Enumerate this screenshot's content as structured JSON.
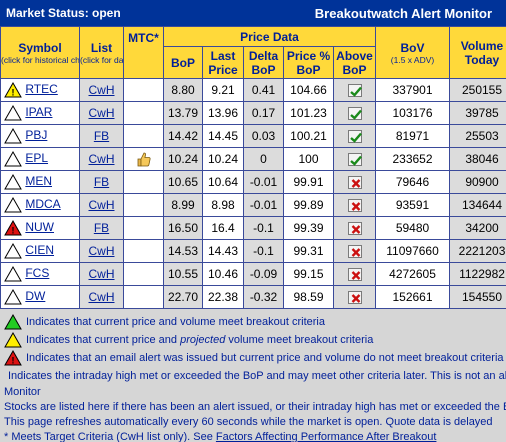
{
  "titlebar": {
    "market_status": "Market Status: open",
    "app_title": "Breakoutwatch Alert Monitor"
  },
  "headers": {
    "symbol": "Symbol",
    "symbol_sub": "(click for historical chart)",
    "list": "List",
    "list_sub": "(click for data)",
    "mtc": "MTC*",
    "price_data": "Price Data",
    "bop": "BoP",
    "last_price": "Last Price",
    "delta_bop": "Delta BoP",
    "price_pct_bop": "Price % BoP",
    "above_bop": "Above BoP",
    "bov": "BoV",
    "bov_sub": "(1.5 x ADV)",
    "volume_today": "Volume Today"
  },
  "rows": [
    {
      "icon": "yellow",
      "symbol": "RTEC",
      "list": "CwH",
      "mtc": "",
      "bop": "8.80",
      "last": "9.21",
      "delta": "0.41",
      "pct": "104.66",
      "above": "check",
      "bov": "337901",
      "vol": "250155"
    },
    {
      "icon": "white",
      "symbol": "IPAR",
      "list": "CwH",
      "mtc": "",
      "bop": "13.79",
      "last": "13.96",
      "delta": "0.17",
      "pct": "101.23",
      "above": "check",
      "bov": "103176",
      "vol": "39785"
    },
    {
      "icon": "white",
      "symbol": "PBJ",
      "list": "FB",
      "mtc": "",
      "bop": "14.42",
      "last": "14.45",
      "delta": "0.03",
      "pct": "100.21",
      "above": "check",
      "bov": "81971",
      "vol": "25503"
    },
    {
      "icon": "white",
      "symbol": "EPL",
      "list": "CwH",
      "mtc": "thumb",
      "bop": "10.24",
      "last": "10.24",
      "delta": "0",
      "pct": "100",
      "above": "check",
      "bov": "233652",
      "vol": "38046"
    },
    {
      "icon": "white",
      "symbol": "MEN",
      "list": "FB",
      "mtc": "",
      "bop": "10.65",
      "last": "10.64",
      "delta": "-0.01",
      "pct": "99.91",
      "above": "cross",
      "bov": "79646",
      "vol": "90900"
    },
    {
      "icon": "white",
      "symbol": "MDCA",
      "list": "CwH",
      "mtc": "",
      "bop": "8.99",
      "last": "8.98",
      "delta": "-0.01",
      "pct": "99.89",
      "above": "cross",
      "bov": "93591",
      "vol": "134644"
    },
    {
      "icon": "red",
      "symbol": "NUW",
      "list": "FB",
      "mtc": "",
      "bop": "16.50",
      "last": "16.4",
      "delta": "-0.1",
      "pct": "99.39",
      "above": "cross",
      "bov": "59480",
      "vol": "34200"
    },
    {
      "icon": "white",
      "symbol": "CIEN",
      "list": "CwH",
      "mtc": "",
      "bop": "14.53",
      "last": "14.43",
      "delta": "-0.1",
      "pct": "99.31",
      "above": "cross",
      "bov": "11097660",
      "vol": "2221203"
    },
    {
      "icon": "white",
      "symbol": "FCS",
      "list": "CwH",
      "mtc": "",
      "bop": "10.55",
      "last": "10.46",
      "delta": "-0.09",
      "pct": "99.15",
      "above": "cross",
      "bov": "4272605",
      "vol": "1122982"
    },
    {
      "icon": "white",
      "symbol": "DW",
      "list": "CwH",
      "mtc": "",
      "bop": "22.70",
      "last": "22.38",
      "delta": "-0.32",
      "pct": "98.59",
      "above": "cross",
      "bov": "152661",
      "vol": "154550"
    }
  ],
  "legend": {
    "green": "Indicates that current price and volume meet breakout criteria",
    "yellow_pre": "Indicates that current price and ",
    "yellow_em": "projected",
    "yellow_post": " volume meet breakout criteria",
    "red": "Indicates that an email alert was issued but current price and volume do not meet breakout criteria",
    "white": "Indicates the intraday high met or exceeded the BoP and may meet other criteria later. This is not an alert, only an indication to Monitor",
    "white_wrap": "Monitor",
    "stocks_note": "Stocks are listed here if there has been an alert issued, or their intraday high has met or exceeded the BoP",
    "refresh_note": "This page refreshes automatically every 60 seconds while the market is open. Quote data is delayed",
    "mtc_note_pre": "* Meets Target Criteria (CwH list only). See ",
    "mtc_link": "Factors Affecting Performance After Breakout"
  },
  "colors": {
    "titlebar": "#003399",
    "header": "#ffd93a",
    "row_gray": "#dcdcdc",
    "legend_bg": "#d6d6d6",
    "link": "#001f99"
  }
}
